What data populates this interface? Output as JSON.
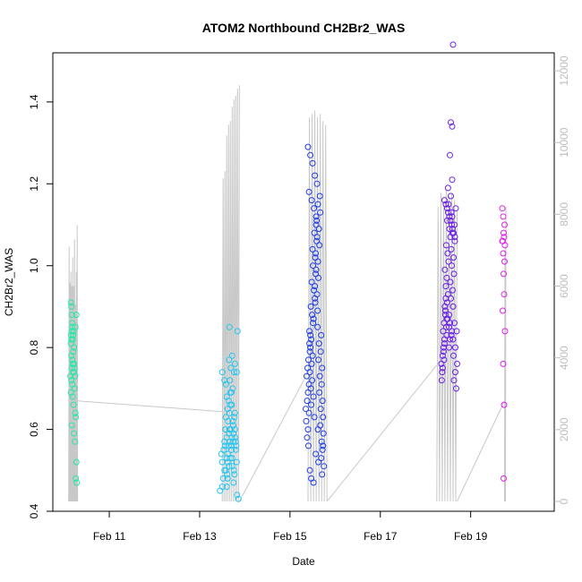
{
  "chart_data": {
    "type": "scatter",
    "title": "ATOM2 Northbound CH2Br2_WAS",
    "xlabel": "Date",
    "ylabel": "CH2Br2_WAS",
    "x_unit": "days in February",
    "xlim": [
      9.75,
      20.85
    ],
    "ylim": [
      0.4,
      1.52
    ],
    "x_ticks": [
      {
        "value": 11,
        "label": "Feb 11"
      },
      {
        "value": 13,
        "label": "Feb 13"
      },
      {
        "value": 15,
        "label": "Feb 15"
      },
      {
        "value": 17,
        "label": "Feb 17"
      },
      {
        "value": 19,
        "label": "Feb 19"
      }
    ],
    "y_ticks": [
      {
        "value": 0.4,
        "label": "0.4"
      },
      {
        "value": 0.6,
        "label": "0.6"
      },
      {
        "value": 0.8,
        "label": "0.8"
      },
      {
        "value": 1.0,
        "label": "1.0"
      },
      {
        "value": 1.2,
        "label": "1.2"
      },
      {
        "value": 1.4,
        "label": "1.4"
      }
    ],
    "right_axis": {
      "color": "#bdbdbd",
      "range": [
        0,
        12500
      ],
      "ticks": [
        {
          "value": 0,
          "label": "0"
        },
        {
          "value": 2000,
          "label": "2000"
        },
        {
          "value": 4000,
          "label": "4000"
        },
        {
          "value": 6000,
          "label": "6000"
        },
        {
          "value": 8000,
          "label": "8000"
        },
        {
          "value": 10000,
          "label": "10000"
        },
        {
          "value": 12000,
          "label": "12000"
        }
      ]
    },
    "grid": false,
    "series": [
      {
        "color": "#23e8a8",
        "x": [
          10.15,
          10.16,
          10.18,
          10.17,
          10.15,
          10.19,
          10.2,
          10.16,
          10.18,
          10.17,
          10.15,
          10.21,
          10.2,
          10.22,
          10.16,
          10.18,
          10.14,
          10.17,
          10.19,
          10.21,
          10.23,
          10.16,
          10.18,
          10.2,
          10.22,
          10.15,
          10.24,
          10.19,
          10.21,
          10.23,
          10.17,
          10.25,
          10.22,
          10.26,
          10.24,
          10.27,
          10.26,
          10.28,
          10.27,
          10.25
        ],
        "y": [
          0.91,
          0.9,
          0.85,
          0.84,
          0.83,
          0.82,
          0.83,
          0.82,
          0.86,
          0.88,
          0.81,
          0.84,
          0.79,
          0.8,
          0.78,
          0.77,
          0.73,
          0.75,
          0.76,
          0.74,
          0.75,
          0.72,
          0.71,
          0.74,
          0.76,
          0.69,
          0.73,
          0.68,
          0.66,
          0.7,
          0.61,
          0.64,
          0.59,
          0.63,
          0.57,
          0.52,
          0.48,
          0.47,
          0.88,
          0.85
        ]
      },
      {
        "color": "#26c6f0",
        "x": [
          13.45,
          13.5,
          13.52,
          13.55,
          13.5,
          13.48,
          13.53,
          13.56,
          13.58,
          13.6,
          13.55,
          13.62,
          13.57,
          13.6,
          13.63,
          13.65,
          13.58,
          13.61,
          13.64,
          13.66,
          13.62,
          13.68,
          13.6,
          13.65,
          13.67,
          13.7,
          13.63,
          13.66,
          13.69,
          13.72,
          13.64,
          13.68,
          13.71,
          13.74,
          13.67,
          13.7,
          13.73,
          13.76,
          13.69,
          13.72,
          13.75,
          13.78,
          13.71,
          13.74,
          13.77,
          13.8,
          13.73,
          13.76,
          13.79,
          13.82,
          13.75,
          13.78,
          13.81,
          13.84,
          13.77,
          13.8,
          13.83,
          13.86,
          13.66,
          13.72,
          13.65,
          13.78,
          13.82,
          13.5,
          13.55,
          13.6,
          13.62,
          13.68,
          13.58,
          13.7
        ],
        "y": [
          0.45,
          0.46,
          0.48,
          0.5,
          0.52,
          0.54,
          0.55,
          0.56,
          0.5,
          0.53,
          0.57,
          0.52,
          0.6,
          0.58,
          0.54,
          0.51,
          0.63,
          0.49,
          0.56,
          0.6,
          0.48,
          0.53,
          0.46,
          0.59,
          0.57,
          0.55,
          0.62,
          0.64,
          0.6,
          0.51,
          0.67,
          0.69,
          0.58,
          0.61,
          0.72,
          0.56,
          0.62,
          0.5,
          0.75,
          0.53,
          0.59,
          0.64,
          0.66,
          0.57,
          0.49,
          0.55,
          0.7,
          0.74,
          0.58,
          0.52,
          0.47,
          0.6,
          0.56,
          0.84,
          0.63,
          0.57,
          0.44,
          0.43,
          0.85,
          0.78,
          0.77,
          0.76,
          0.74,
          0.74,
          0.72,
          0.68,
          0.65,
          0.66,
          0.71,
          0.69
        ]
      },
      {
        "color": "#1f3ee8",
        "x": [
          15.35,
          15.38,
          15.4,
          15.42,
          15.37,
          15.39,
          15.41,
          15.44,
          15.36,
          15.43,
          15.45,
          15.4,
          15.42,
          15.47,
          15.38,
          15.46,
          15.49,
          15.44,
          15.41,
          15.48,
          15.5,
          15.45,
          15.52,
          15.47,
          15.43,
          15.51,
          15.54,
          15.49,
          15.46,
          15.55,
          15.53,
          15.48,
          15.57,
          15.51,
          15.56,
          15.5,
          15.59,
          15.54,
          15.58,
          15.52,
          15.61,
          15.56,
          15.6,
          15.55,
          15.63,
          15.58,
          15.62,
          15.57,
          15.65,
          15.6,
          15.64,
          15.59,
          15.67,
          15.62,
          15.66,
          15.61,
          15.69,
          15.64,
          15.68,
          15.63,
          15.71,
          15.66,
          15.7,
          15.65,
          15.72,
          15.68,
          15.73,
          15.67,
          15.74,
          15.7,
          15.72,
          15.69,
          15.75,
          15.71,
          15.73,
          15.4,
          15.45,
          15.5,
          15.55,
          15.6,
          15.42,
          15.48,
          15.53,
          15.58,
          15.63,
          15.44,
          15.47,
          15.52,
          15.57,
          15.62
        ],
        "y": [
          0.65,
          0.67,
          0.69,
          0.71,
          0.73,
          0.75,
          0.77,
          0.79,
          0.62,
          0.81,
          0.83,
          0.6,
          0.64,
          0.66,
          0.58,
          0.7,
          0.72,
          0.74,
          0.56,
          0.76,
          0.78,
          0.8,
          0.68,
          0.82,
          0.84,
          0.86,
          0.63,
          0.88,
          0.9,
          0.92,
          0.94,
          0.96,
          0.98,
          1.0,
          1.02,
          1.04,
          1.06,
          1.08,
          1.1,
          0.87,
          0.89,
          0.91,
          0.93,
          0.95,
          0.97,
          0.99,
          1.01,
          1.03,
          1.05,
          1.07,
          1.09,
          1.11,
          1.13,
          1.15,
          1.17,
          0.85,
          0.83,
          0.81,
          0.79,
          0.77,
          0.75,
          0.73,
          0.71,
          0.69,
          0.67,
          0.65,
          0.63,
          0.61,
          0.59,
          0.57,
          0.55,
          0.53,
          0.51,
          0.49,
          0.56,
          1.29,
          1.27,
          1.25,
          1.22,
          1.2,
          1.18,
          1.16,
          1.14,
          1.12,
          0.52,
          0.5,
          0.48,
          0.47,
          0.54,
          0.6
        ]
      },
      {
        "color": "#6a1fe6",
        "x": [
          18.35,
          18.38,
          18.4,
          18.42,
          18.37,
          18.39,
          18.41,
          18.44,
          18.36,
          18.43,
          18.45,
          18.4,
          18.42,
          18.47,
          18.38,
          18.46,
          18.49,
          18.44,
          18.41,
          18.48,
          18.5,
          18.45,
          18.52,
          18.47,
          18.43,
          18.51,
          18.54,
          18.49,
          18.46,
          18.55,
          18.53,
          18.48,
          18.57,
          18.51,
          18.56,
          18.5,
          18.59,
          18.54,
          18.58,
          18.52,
          18.61,
          18.56,
          18.6,
          18.55,
          18.63,
          18.58,
          18.62,
          18.57,
          18.65,
          18.6,
          18.64,
          18.59,
          18.67,
          18.62,
          18.66,
          18.61,
          18.69,
          18.64,
          18.68,
          18.63,
          18.7,
          18.66,
          18.45,
          18.5,
          18.55,
          18.6,
          18.65,
          18.42,
          18.48,
          18.53,
          18.58,
          18.62,
          18.44,
          18.47,
          18.52,
          18.57,
          18.61,
          18.56,
          18.59,
          18.54
        ],
        "y": [
          0.76,
          0.78,
          0.8,
          0.82,
          0.74,
          0.84,
          0.86,
          0.88,
          0.72,
          0.9,
          0.92,
          0.79,
          0.81,
          0.83,
          0.75,
          0.85,
          0.87,
          0.89,
          0.77,
          0.91,
          0.93,
          0.95,
          0.8,
          0.97,
          0.99,
          1.01,
          0.82,
          1.03,
          1.05,
          1.07,
          1.09,
          1.11,
          1.13,
          1.15,
          1.17,
          1.19,
          1.21,
          0.86,
          0.84,
          0.88,
          0.9,
          0.92,
          0.94,
          0.96,
          0.98,
          1.0,
          1.02,
          1.04,
          1.06,
          1.08,
          1.1,
          1.12,
          1.14,
          0.78,
          0.8,
          0.82,
          0.84,
          0.86,
          0.7,
          0.72,
          0.76,
          0.74,
          1.15,
          1.13,
          1.11,
          1.09,
          1.07,
          1.16,
          1.14,
          1.12,
          1.1,
          1.08,
          0.89,
          0.87,
          0.85,
          0.83,
          1.54,
          1.35,
          1.34,
          1.27
        ]
      },
      {
        "color": "#e020e6",
        "x": [
          19.7,
          19.72,
          19.75,
          19.73,
          19.71,
          19.74,
          19.76,
          19.72,
          19.7,
          19.75,
          19.73,
          19.74,
          19.71,
          19.76,
          19.72,
          19.74,
          19.73
        ],
        "y": [
          1.14,
          1.12,
          1.1,
          1.08,
          1.06,
          1.07,
          1.05,
          1.03,
          1.06,
          1.01,
          0.98,
          0.93,
          0.89,
          0.84,
          0.76,
          0.66,
          0.48
        ]
      }
    ],
    "secondary_line": {
      "color": "#c8c8c8",
      "axis": "right",
      "segments": [
        {
          "x": [
            10.1,
            10.11,
            10.12,
            10.13,
            10.14,
            10.15,
            10.16,
            10.17,
            10.18,
            10.19,
            10.2,
            10.21,
            10.22,
            10.23,
            10.24,
            10.25,
            10.26,
            10.27,
            10.28,
            10.29,
            10.3
          ],
          "y": [
            0,
            7100,
            0,
            6100,
            0,
            6400,
            0,
            6000,
            0,
            6800,
            0,
            6000,
            0,
            7300,
            0,
            5500,
            0,
            6400,
            0,
            7700,
            0
          ]
        },
        {
          "x": [
            10.3,
            13.5
          ],
          "y": [
            2800,
            2500
          ]
        },
        {
          "x": [
            13.5,
            13.52,
            13.54,
            13.56,
            13.58,
            13.6,
            13.62,
            13.64,
            13.66,
            13.68,
            13.7,
            13.72,
            13.74,
            13.76,
            13.78,
            13.8,
            13.82,
            13.84,
            13.86,
            13.88
          ],
          "y": [
            0,
            9000,
            0,
            9200,
            0,
            10200,
            0,
            10500,
            0,
            10600,
            0,
            11000,
            0,
            11200,
            0,
            11300,
            0,
            11500,
            0,
            11600
          ]
        },
        {
          "x": [
            13.88,
            15.4
          ],
          "y": [
            0,
            3600
          ]
        },
        {
          "x": [
            15.4,
            15.43,
            15.46,
            15.49,
            15.52,
            15.55,
            15.58,
            15.61,
            15.64,
            15.67,
            15.7,
            15.73,
            15.76,
            15.79,
            15.82
          ],
          "y": [
            0,
            10700,
            0,
            10800,
            0,
            10900,
            0,
            10700,
            0,
            10800,
            0,
            10600,
            0,
            10500,
            0
          ]
        },
        {
          "x": [
            15.82,
            18.25
          ],
          "y": [
            0,
            3800
          ]
        },
        {
          "x": [
            18.25,
            18.28,
            18.31,
            18.34,
            18.37,
            18.4,
            18.43,
            18.46,
            18.49,
            18.52,
            18.55,
            18.58,
            18.61,
            18.64,
            18.67,
            18.7
          ],
          "y": [
            0,
            8200,
            0,
            8600,
            0,
            8300,
            0,
            8700,
            0,
            8500,
            0,
            8600,
            0,
            8400,
            0,
            8100
          ]
        },
        {
          "x": [
            18.7,
            19.75
          ],
          "y": [
            0,
            2800
          ]
        },
        {
          "x": [
            19.75,
            19.76,
            19.77,
            19.78
          ],
          "y": [
            0,
            7000,
            0,
            8200
          ]
        }
      ]
    }
  }
}
